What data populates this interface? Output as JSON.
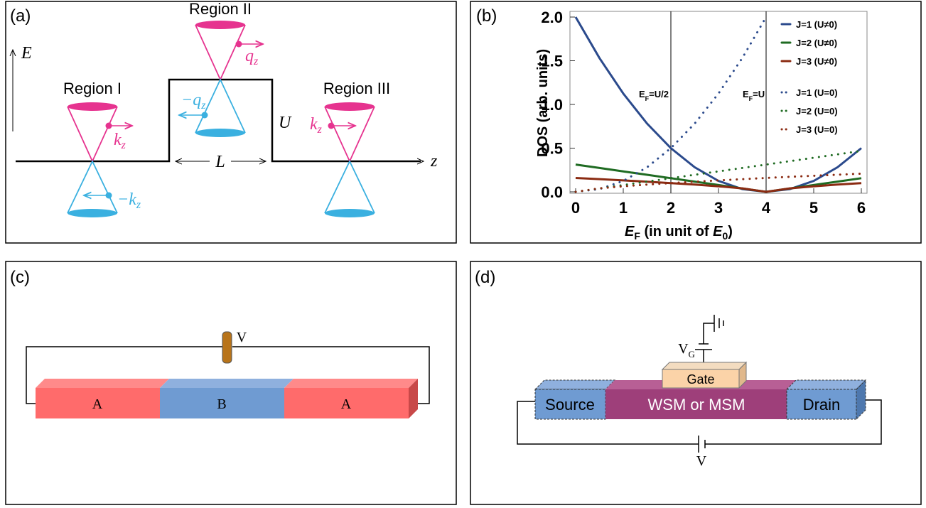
{
  "panels": {
    "a": {
      "label": "(a)",
      "energy": "E",
      "position": "z",
      "regions": [
        "Region I",
        "Region II",
        "Region III"
      ],
      "k_right": {
        "main": "k",
        "sub": "z"
      },
      "k_left": {
        "main": "−k",
        "sub": "z"
      },
      "q_right": {
        "main": "q",
        "sub": "z"
      },
      "q_left": {
        "main": "−q",
        "sub": "z"
      },
      "k_right_3": {
        "main": "k",
        "sub": "z"
      },
      "barrier": "U",
      "width": "L"
    },
    "c": {
      "label": "(c)",
      "voltage": "V",
      "blocks": [
        "A",
        "B",
        "A"
      ]
    },
    "d": {
      "label": "(d)",
      "gate_voltage": {
        "main": "V",
        "sub": "G"
      },
      "gate": "Gate",
      "source": "Source",
      "channel": "WSM or MSM",
      "drain": "Drain",
      "voltage": "V"
    }
  },
  "chart_data": {
    "type": "line",
    "panel_label": "(b)",
    "ylabel": "DOS (arb. units)",
    "xlabel": [
      {
        "text": "E",
        "sub": "F"
      },
      {
        "text": " (in unit of "
      },
      {
        "text": "E",
        "sub": "0"
      },
      {
        "text": ")"
      }
    ],
    "x": [
      0,
      0.5,
      1,
      1.5,
      2,
      2.5,
      3,
      3.5,
      4,
      4.5,
      5,
      5.5,
      6
    ],
    "xlim": [
      0,
      6
    ],
    "ylim": [
      0,
      2
    ],
    "xticks": [
      0,
      1,
      2,
      3,
      4,
      5,
      6
    ],
    "yticks": [
      {
        "value": 0,
        "label": "0.0"
      },
      {
        "value": 0.5,
        "label": "0.5"
      },
      {
        "value": 1,
        "label": "1.0"
      },
      {
        "value": 1.5,
        "label": "1.5"
      },
      {
        "value": 2,
        "label": "2.0"
      }
    ],
    "vlines": [
      2,
      4
    ],
    "annotations": [
      {
        "text": "E",
        "sub": "F",
        "rest": "=U/2"
      },
      {
        "text": "E",
        "sub": "F",
        "rest": "=U"
      }
    ],
    "legend": "upper right",
    "series": [
      {
        "name": "J=1 (U≠0)",
        "color": "#2b4a8c",
        "style": "solid",
        "values": [
          2,
          1.531,
          1.125,
          0.781,
          0.5,
          0.281,
          0.125,
          0.031,
          0,
          0.031,
          0.125,
          0.281,
          0.5
        ]
      },
      {
        "name": "J=2 (U≠0)",
        "color": "#1f6b22",
        "style": "solid",
        "values": [
          0.312,
          0.273,
          0.234,
          0.195,
          0.156,
          0.117,
          0.078,
          0.039,
          0,
          0.039,
          0.078,
          0.117,
          0.156
        ]
      },
      {
        "name": "J=3 (U≠0)",
        "color": "#8b2b12",
        "style": "solid",
        "values": [
          0.159,
          0.145,
          0.131,
          0.116,
          0.1,
          0.083,
          0.063,
          0.04,
          0,
          0.04,
          0.063,
          0.083,
          0.1
        ]
      },
      {
        "name": "J=1 (U=0)",
        "color": "#2b4a8c",
        "style": "dotted",
        "values": [
          0,
          0.031,
          0.125,
          0.281,
          0.5,
          0.781,
          1.125,
          1.531,
          2,
          null,
          null,
          null,
          null
        ]
      },
      {
        "name": "J=2 (U=0)",
        "color": "#1f6b22",
        "style": "dotted",
        "values": [
          0,
          0.039,
          0.078,
          0.117,
          0.156,
          0.195,
          0.234,
          0.273,
          0.312,
          0.351,
          0.39,
          0.429,
          0.468
        ]
      },
      {
        "name": "J=3 (U=0)",
        "color": "#8b2b12",
        "style": "dotted",
        "values": [
          0,
          0.04,
          0.063,
          0.083,
          0.1,
          0.116,
          0.131,
          0.145,
          0.159,
          0.172,
          0.184,
          0.196,
          0.208
        ]
      }
    ]
  }
}
